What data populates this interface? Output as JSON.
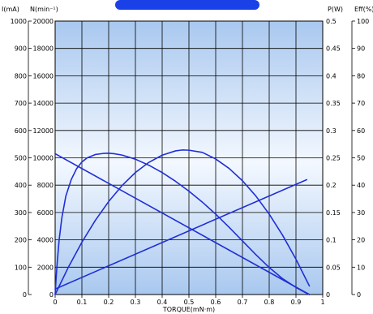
{
  "header": {
    "current_unit": "I(mA)",
    "speed_unit": "N(min⁻¹)",
    "power_unit": "P(W)",
    "eff_unit": "Eff(%)",
    "banner_color": "#1a40e8"
  },
  "chart_data": {
    "type": "line",
    "title": "",
    "xlabel": "TORQUE(mN·m)",
    "xlim": [
      0,
      1
    ],
    "x_ticks": [
      "0",
      "0.1",
      "0.2",
      "0.3",
      "0.4",
      "0.5",
      "0.6",
      "0.7",
      "0.8",
      "0.9",
      "1"
    ],
    "axes": {
      "current": {
        "unit": "I(mA)",
        "range": [
          0,
          1000
        ],
        "ticks": [
          "0",
          "100",
          "200",
          "300",
          "400",
          "500",
          "600",
          "700",
          "800",
          "900",
          "1000"
        ]
      },
      "speed": {
        "unit": "N(min⁻¹)",
        "range": [
          0,
          20000
        ],
        "ticks": [
          "0",
          "2000",
          "4000",
          "6000",
          "8000",
          "10000",
          "12000",
          "14000",
          "16000",
          "18000",
          "20000"
        ]
      },
      "power": {
        "unit": "P(W)",
        "range": [
          0,
          0.5
        ],
        "ticks": [
          "0",
          "0.05",
          "0.1",
          "0.15",
          "0.2",
          "0.25",
          "0.3",
          "0.35",
          "0.4",
          "0.45",
          "0.5"
        ]
      },
      "efficiency": {
        "unit": "Eff(%)",
        "range": [
          0,
          100
        ],
        "ticks": [
          "0",
          "10",
          "20",
          "30",
          "40",
          "50",
          "60",
          "70",
          "80",
          "90",
          "100"
        ]
      }
    },
    "grid": true,
    "line_color": "#1f2fd6",
    "series": [
      {
        "axis": "speed",
        "x": [
          0,
          0.95
        ],
        "y": [
          10300,
          0
        ]
      },
      {
        "axis": "current",
        "x": [
          0,
          0.94
        ],
        "y": [
          20,
          420
        ]
      },
      {
        "axis": "power",
        "x": [
          0,
          0.05,
          0.1,
          0.15,
          0.2,
          0.25,
          0.3,
          0.35,
          0.4,
          0.45,
          0.475,
          0.5,
          0.55,
          0.6,
          0.65,
          0.7,
          0.75,
          0.8,
          0.85,
          0.9,
          0.95
        ],
        "y": [
          0,
          0.0505,
          0.0957,
          0.1355,
          0.17,
          0.1992,
          0.2231,
          0.2416,
          0.2548,
          0.2627,
          0.2643,
          0.2639,
          0.2599,
          0.2479,
          0.2306,
          0.2081,
          0.1802,
          0.147,
          0.1084,
          0.0646,
          0.0157
        ]
      },
      {
        "axis": "efficiency",
        "x": [
          0,
          0.003,
          0.008,
          0.015,
          0.025,
          0.04,
          0.06,
          0.08,
          0.1,
          0.12,
          0.15,
          0.18,
          0.2,
          0.22,
          0.25,
          0.3,
          0.35,
          0.4,
          0.45,
          0.5,
          0.55,
          0.6,
          0.65,
          0.7,
          0.75,
          0.8,
          0.85,
          0.9,
          0.93,
          0.95
        ],
        "y": [
          0,
          5,
          12,
          20,
          28,
          36,
          42,
          46,
          48.5,
          50,
          51.2,
          51.6,
          51.7,
          51.5,
          51.0,
          49.5,
          47.3,
          44.6,
          41.4,
          37.8,
          33.8,
          29.4,
          24.6,
          19.6,
          14.6,
          9.9,
          5.8,
          2.6,
          1.0,
          0
        ]
      }
    ]
  }
}
